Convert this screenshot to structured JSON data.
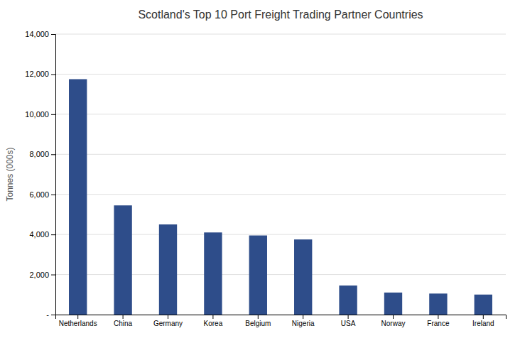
{
  "chart_data": {
    "type": "bar",
    "title": "Scotland's Top 10 Port Freight Trading Partner Countries",
    "ylabel": "Tonnes (000s)",
    "categories": [
      "Netherlands",
      "China",
      "Germany",
      "Korea",
      "Belgium",
      "Nigeria",
      "USA",
      "Norway",
      "France",
      "Ireland"
    ],
    "values": [
      11750,
      5450,
      4500,
      4100,
      3950,
      3750,
      1450,
      1100,
      1050,
      1000
    ],
    "color": "#2E4D8A",
    "ylim": [
      0,
      14000
    ],
    "yticks": [
      {
        "value": 0,
        "label": "-"
      },
      {
        "value": 2000,
        "label": "2,000"
      },
      {
        "value": 4000,
        "label": "4,000"
      },
      {
        "value": 6000,
        "label": "6,000"
      },
      {
        "value": 8000,
        "label": "8,000"
      },
      {
        "value": 10000,
        "label": "10,000"
      },
      {
        "value": 12000,
        "label": "12,000"
      },
      {
        "value": 14000,
        "label": "14,000"
      }
    ],
    "grid": true
  }
}
